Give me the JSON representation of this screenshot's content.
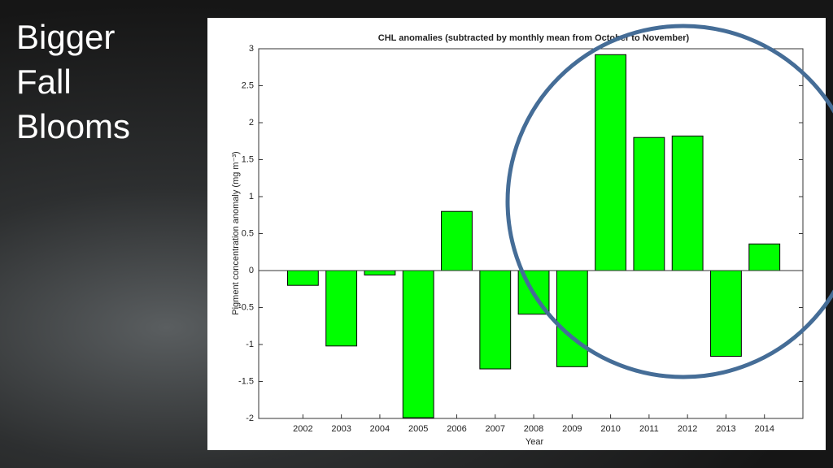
{
  "slide_title": "Bigger Fall Blooms",
  "chart_data": {
    "type": "bar",
    "title": "CHL anomalies (subtracted by monthly mean from October to November)",
    "x_label": "Year",
    "y_label": "Pigment concentration anomaly (mg m⁻³)",
    "categories": [
      "2002",
      "2003",
      "2004",
      "2005",
      "2006",
      "2007",
      "2008",
      "2009",
      "2010",
      "2011",
      "2012",
      "2013",
      "2014"
    ],
    "values": [
      -0.2,
      -1.02,
      -0.06,
      -1.99,
      0.8,
      -1.33,
      -0.59,
      -1.3,
      2.92,
      1.8,
      1.82,
      -1.16,
      0.36
    ],
    "color": "#00ff00",
    "ylim": [
      -2,
      3
    ],
    "yticks": [
      -2,
      -1.5,
      -1,
      -0.5,
      0,
      0.5,
      1,
      1.5,
      2,
      2.5,
      3
    ],
    "grid": false
  }
}
